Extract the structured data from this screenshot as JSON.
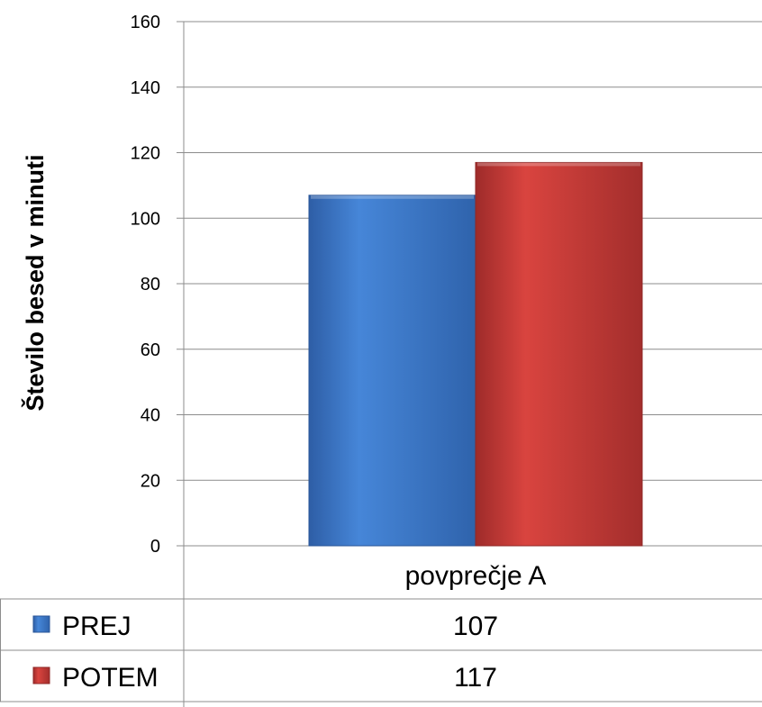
{
  "chart_data": {
    "type": "bar",
    "title": "",
    "xlabel": "",
    "ylabel": "Število besed v minuti",
    "categories": [
      "povprečje A"
    ],
    "series": [
      {
        "name": "PREJ",
        "values": [
          107
        ],
        "color": "#3b76c8"
      },
      {
        "name": "POTEM",
        "values": [
          117
        ],
        "color": "#c43a37"
      }
    ],
    "ylim": [
      0,
      160
    ],
    "y_ticks": [
      "0",
      "20",
      "40",
      "60",
      "80",
      "100",
      "120",
      "140",
      "160"
    ],
    "grid": true,
    "legend": "data-table"
  }
}
